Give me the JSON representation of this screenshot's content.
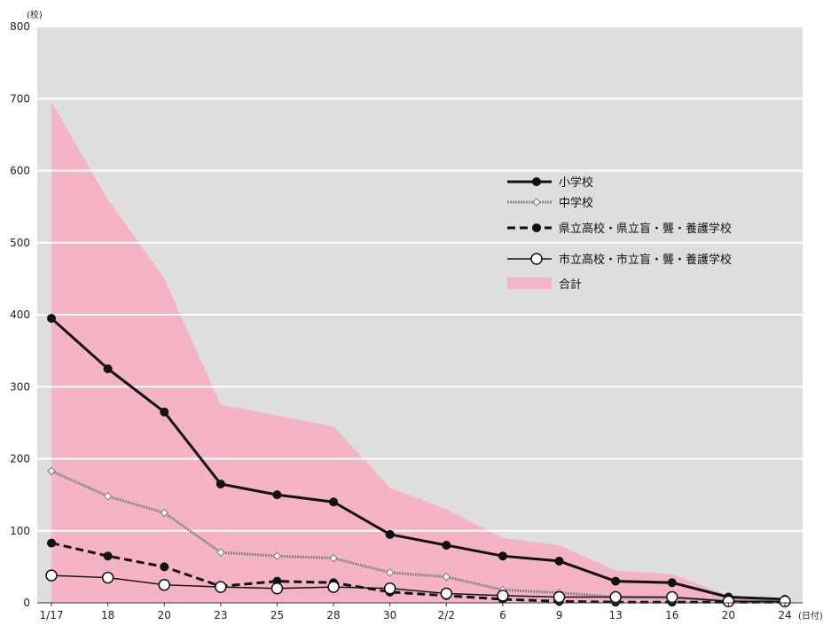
{
  "chart_data": {
    "type": "line",
    "title": "",
    "y_unit": "(校)",
    "x_unit": "(日付)",
    "ylim": [
      0,
      800
    ],
    "yticks": [
      0,
      100,
      200,
      300,
      400,
      500,
      600,
      700,
      800
    ],
    "categories": [
      "1/17",
      "18",
      "20",
      "23",
      "25",
      "28",
      "30",
      "2/2",
      "6",
      "9",
      "13",
      "16",
      "20",
      "24"
    ],
    "grid": true,
    "legend_position": "top-right",
    "area": {
      "name": "合計",
      "color": "#f5b3c6",
      "values": [
        695,
        560,
        450,
        275,
        260,
        245,
        160,
        130,
        90,
        80,
        45,
        40,
        10,
        5
      ]
    },
    "series": [
      {
        "name": "小学校",
        "style": "solid-thick",
        "marker": "filled-circle",
        "color": "#111111",
        "values": [
          395,
          325,
          265,
          165,
          150,
          140,
          95,
          80,
          65,
          58,
          30,
          28,
          8,
          5
        ]
      },
      {
        "name": "中学校",
        "style": "hatched",
        "marker": "diamond",
        "color": "#888888",
        "values": [
          183,
          148,
          125,
          70,
          65,
          62,
          42,
          36,
          18,
          14,
          8,
          7,
          3,
          2
        ]
      },
      {
        "name": "県立高校・県立盲・聾・養護学校",
        "style": "dashed",
        "marker": "filled-circle",
        "color": "#111111",
        "values": [
          83,
          65,
          50,
          23,
          30,
          28,
          15,
          10,
          5,
          2,
          1,
          1,
          1,
          1
        ]
      },
      {
        "name": "市立高校・市立盲・聾・養護学校",
        "style": "solid-thin",
        "marker": "open-circle",
        "color": "#111111",
        "values": [
          38,
          35,
          25,
          22,
          20,
          22,
          20,
          13,
          10,
          8,
          8,
          8,
          2,
          2
        ]
      }
    ]
  }
}
